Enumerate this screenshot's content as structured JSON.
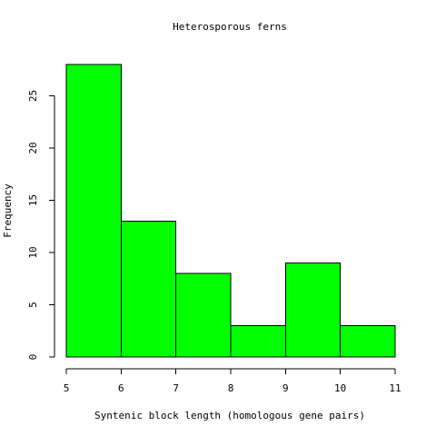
{
  "chart_data": {
    "type": "bar",
    "title": "Heterosporous ferns",
    "xlabel": "Syntenic block length (homologous gene pairs)",
    "ylabel": "Frequency",
    "bins": [
      {
        "start": 5,
        "end": 6,
        "count": 28
      },
      {
        "start": 6,
        "end": 7,
        "count": 13
      },
      {
        "start": 7,
        "end": 8,
        "count": 8
      },
      {
        "start": 8,
        "end": 9,
        "count": 3
      },
      {
        "start": 9,
        "end": 10,
        "count": 9
      },
      {
        "start": 10,
        "end": 11,
        "count": 3
      }
    ],
    "xlim": [
      5,
      11
    ],
    "ylim": [
      0,
      28
    ],
    "xticks": [
      "5",
      "6",
      "7",
      "8",
      "9",
      "10",
      "11"
    ],
    "yticks": [
      "0",
      "5",
      "10",
      "15",
      "20",
      "25"
    ],
    "bar_color": "#00FF00",
    "grid": false,
    "legend": "none"
  }
}
